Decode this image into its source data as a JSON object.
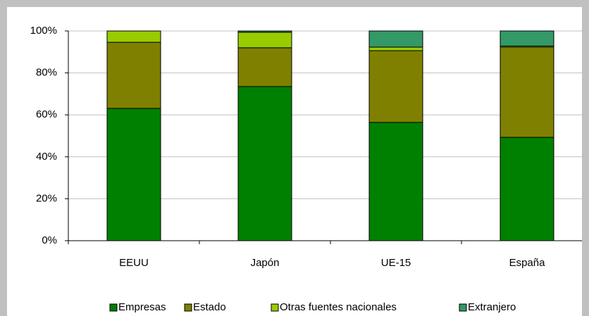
{
  "chart_data": {
    "type": "stacked-bar",
    "categories": [
      "EEUU",
      "Japón",
      "UE-15",
      "España"
    ],
    "series": [
      {
        "name": "Empresas",
        "color": "#008000",
        "values": [
          63.1,
          73.5,
          56.4,
          49.3
        ]
      },
      {
        "name": "Estado",
        "color": "#808000",
        "values": [
          31.5,
          18.5,
          34.2,
          43.0
        ]
      },
      {
        "name": "Otras fuentes nacionales",
        "color": "#99cc00",
        "values": [
          5.4,
          7.4,
          1.7,
          0.5
        ]
      },
      {
        "name": "Extranjero",
        "color": "#339966",
        "values": [
          0,
          0.6,
          7.7,
          7.2
        ]
      }
    ],
    "ylim": [
      0,
      100
    ],
    "yticks": [
      {
        "value": 0,
        "label": "0%"
      },
      {
        "value": 20,
        "label": "20%"
      },
      {
        "value": 40,
        "label": "40%"
      },
      {
        "value": 60,
        "label": "60%"
      },
      {
        "value": 80,
        "label": "80%"
      },
      {
        "value": 100,
        "label": "100%"
      }
    ],
    "grid": true,
    "legend": "bottom"
  }
}
